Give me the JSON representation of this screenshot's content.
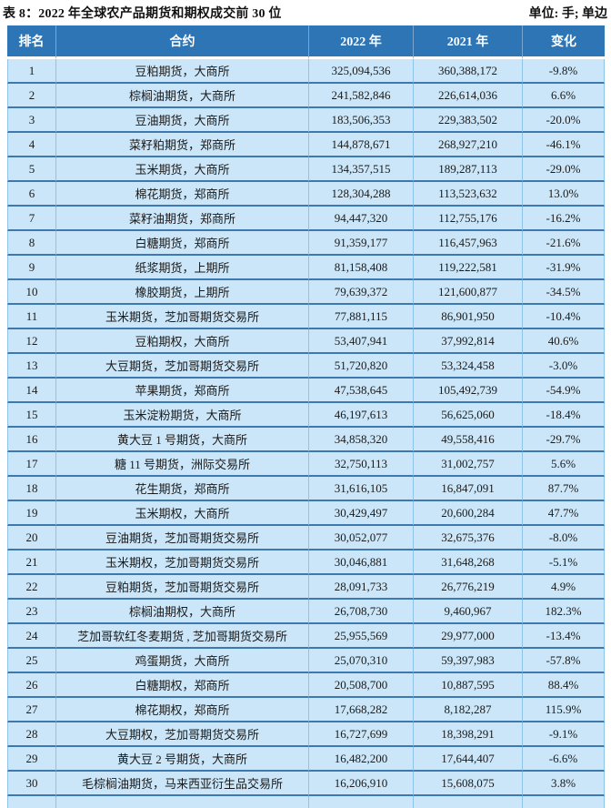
{
  "title": "表 8：2022 年全球农产品期货和期权成交前 30 位",
  "unit": "单位: 手; 单边",
  "colors": {
    "header_bg": "#2e75b6",
    "row_bg": "#cbe6f8",
    "row_divider": "#3d79ae",
    "col_divider": "#8fc4e9"
  },
  "table": {
    "columns": [
      "排名",
      "合约",
      "2022 年",
      "2021 年",
      "变化"
    ],
    "rows": [
      [
        "1",
        "豆粕期货，大商所",
        "325,094,536",
        "360,388,172",
        "-9.8%"
      ],
      [
        "2",
        "棕榈油期货，大商所",
        "241,582,846",
        "226,614,036",
        "6.6%"
      ],
      [
        "3",
        "豆油期货，大商所",
        "183,506,353",
        "229,383,502",
        "-20.0%"
      ],
      [
        "4",
        "菜籽粕期货，郑商所",
        "144,878,671",
        "268,927,210",
        "-46.1%"
      ],
      [
        "5",
        "玉米期货，大商所",
        "134,357,515",
        "189,287,113",
        "-29.0%"
      ],
      [
        "6",
        "棉花期货，郑商所",
        "128,304,288",
        "113,523,632",
        "13.0%"
      ],
      [
        "7",
        "菜籽油期货，郑商所",
        "94,447,320",
        "112,755,176",
        "-16.2%"
      ],
      [
        "8",
        "白糖期货，郑商所",
        "91,359,177",
        "116,457,963",
        "-21.6%"
      ],
      [
        "9",
        "纸浆期货，上期所",
        "81,158,408",
        "119,222,581",
        "-31.9%"
      ],
      [
        "10",
        "橡胶期货，上期所",
        "79,639,372",
        "121,600,877",
        "-34.5%"
      ],
      [
        "11",
        "玉米期货，芝加哥期货交易所",
        "77,881,115",
        "86,901,950",
        "-10.4%"
      ],
      [
        "12",
        "豆粕期权，大商所",
        "53,407,941",
        "37,992,814",
        "40.6%"
      ],
      [
        "13",
        "大豆期货，芝加哥期货交易所",
        "51,720,820",
        "53,324,458",
        "-3.0%"
      ],
      [
        "14",
        "苹果期货，郑商所",
        "47,538,645",
        "105,492,739",
        "-54.9%"
      ],
      [
        "15",
        "玉米淀粉期货，大商所",
        "46,197,613",
        "56,625,060",
        "-18.4%"
      ],
      [
        "16",
        "黄大豆 1 号期货，大商所",
        "34,858,320",
        "49,558,416",
        "-29.7%"
      ],
      [
        "17",
        "糖 11 号期货，洲际交易所",
        "32,750,113",
        "31,002,757",
        "5.6%"
      ],
      [
        "18",
        "花生期货，郑商所",
        "31,616,105",
        "16,847,091",
        "87.7%"
      ],
      [
        "19",
        "玉米期权，大商所",
        "30,429,497",
        "20,600,284",
        "47.7%"
      ],
      [
        "20",
        "豆油期货，芝加哥期货交易所",
        "30,052,077",
        "32,675,376",
        "-8.0%"
      ],
      [
        "21",
        "玉米期权，芝加哥期货交易所",
        "30,046,881",
        "31,648,268",
        "-5.1%"
      ],
      [
        "22",
        "豆粕期货，芝加哥期货交易所",
        "28,091,733",
        "26,776,219",
        "4.9%"
      ],
      [
        "23",
        "棕榈油期权，大商所",
        "26,708,730",
        "9,460,967",
        "182.3%"
      ],
      [
        "24",
        "芝加哥软红冬麦期货 , 芝加哥期货交易所",
        "25,955,569",
        "29,977,000",
        "-13.4%"
      ],
      [
        "25",
        "鸡蛋期货，大商所",
        "25,070,310",
        "59,397,983",
        "-57.8%"
      ],
      [
        "26",
        "白糖期权，郑商所",
        "20,508,700",
        "10,887,595",
        "88.4%"
      ],
      [
        "27",
        "棉花期权，郑商所",
        "17,668,282",
        "8,182,287",
        "115.9%"
      ],
      [
        "28",
        "大豆期权，芝加哥期货交易所",
        "16,727,699",
        "18,398,291",
        "-9.1%"
      ],
      [
        "29",
        "黄大豆 2 号期货，大商所",
        "16,482,200",
        "17,644,407",
        "-6.6%"
      ],
      [
        "30",
        "毛棕榈油期货，马来西亚衍生品交易所",
        "16,206,910",
        "15,608,075",
        "3.8%"
      ]
    ]
  }
}
